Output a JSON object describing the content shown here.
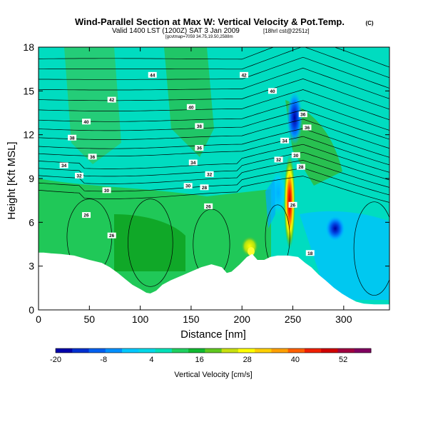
{
  "header": {
    "title": "Wind-Parallel Section at Max W: Vertical Velocity & Pot.Temp.",
    "title_mark": "(C)",
    "subtitle": "Valid 1400 LST (1200Z) SAT 3 Jan 2009",
    "subtitle_tag": "[18hrl cst@2251z]",
    "subtitle_small": "[gcvtmap=7059 34.75,19.50,2588m"
  },
  "chart_data": {
    "type": "heatmap",
    "xlabel": "Distance [nm]",
    "ylabel": "Height [Kft MSL]",
    "xlim": [
      0,
      345
    ],
    "ylim": [
      0,
      18
    ],
    "x_ticks": [
      0,
      50,
      100,
      150,
      200,
      250,
      300
    ],
    "y_ticks": [
      0,
      3,
      6,
      9,
      12,
      15,
      18
    ],
    "colorbar": {
      "label": "Vertical Velocity [cm/s]",
      "tick_labels": [
        "-20",
        "-8",
        "4",
        "16",
        "28",
        "40",
        "52"
      ],
      "colors": [
        "#0000aa",
        "#0030d0",
        "#0060f0",
        "#0090ff",
        "#00c8ff",
        "#00d8e8",
        "#00e0b8",
        "#20d060",
        "#10b830",
        "#60c820",
        "#c8e010",
        "#ffff00",
        "#ffd000",
        "#ffa000",
        "#ff6000",
        "#f02000",
        "#d00000",
        "#a00040",
        "#800060"
      ]
    },
    "contour_labels": [
      {
        "text": "44",
        "x": 112,
        "y": 16.1
      },
      {
        "text": "42",
        "x": 202,
        "y": 16.1
      },
      {
        "text": "42",
        "x": 72,
        "y": 14.4
      },
      {
        "text": "40",
        "x": 230,
        "y": 15.0
      },
      {
        "text": "40",
        "x": 150,
        "y": 13.9
      },
      {
        "text": "40",
        "x": 47,
        "y": 12.9
      },
      {
        "text": "36",
        "x": 260,
        "y": 13.4
      },
      {
        "text": "38",
        "x": 158,
        "y": 12.6
      },
      {
        "text": "36",
        "x": 264,
        "y": 12.5
      },
      {
        "text": "38",
        "x": 33,
        "y": 11.8
      },
      {
        "text": "34",
        "x": 242,
        "y": 11.6
      },
      {
        "text": "36",
        "x": 158,
        "y": 11.1
      },
      {
        "text": "36",
        "x": 53,
        "y": 10.5
      },
      {
        "text": "30",
        "x": 253,
        "y": 10.6
      },
      {
        "text": "32",
        "x": 236,
        "y": 10.3
      },
      {
        "text": "34",
        "x": 152,
        "y": 10.1
      },
      {
        "text": "34",
        "x": 25,
        "y": 9.9
      },
      {
        "text": "28",
        "x": 258,
        "y": 9.8
      },
      {
        "text": "32",
        "x": 168,
        "y": 9.3
      },
      {
        "text": "32",
        "x": 40,
        "y": 9.2
      },
      {
        "text": "30",
        "x": 147,
        "y": 8.5
      },
      {
        "text": "28",
        "x": 163,
        "y": 8.4
      },
      {
        "text": "30",
        "x": 67,
        "y": 8.2
      },
      {
        "text": "26",
        "x": 167,
        "y": 7.1
      },
      {
        "text": "26",
        "x": 250,
        "y": 7.2
      },
      {
        "text": "26",
        "x": 47,
        "y": 6.5
      },
      {
        "text": "26",
        "x": 72,
        "y": 5.1
      },
      {
        "text": "18",
        "x": 267,
        "y": 3.9
      }
    ]
  }
}
